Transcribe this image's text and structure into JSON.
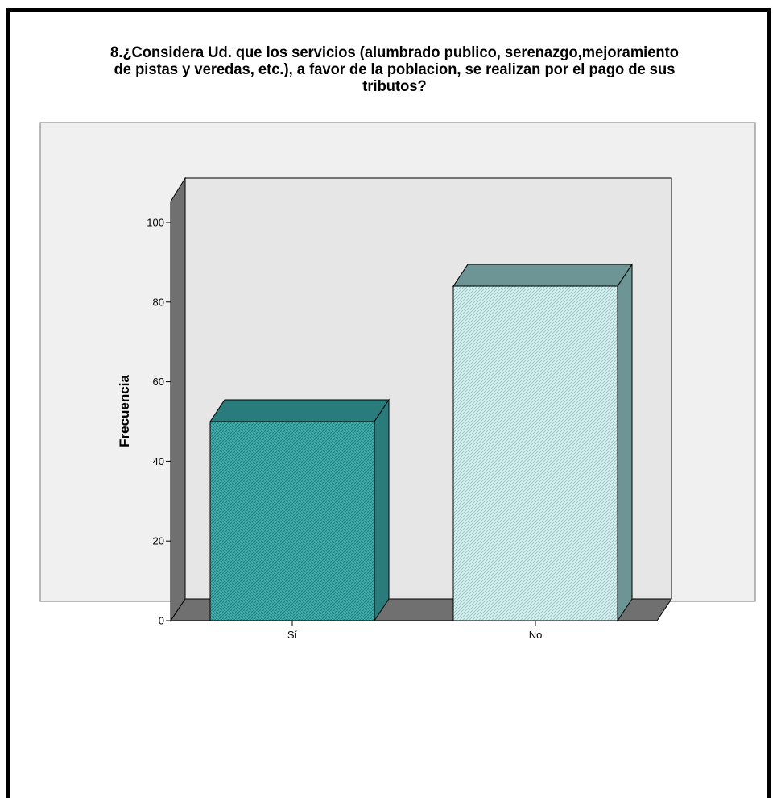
{
  "chart_data": {
    "type": "bar",
    "title_lines": [
      "8.¿Considera Ud. que los servicios (alumbrado publico, serenazgo,mejoramiento",
      "de pistas y veredas, etc.), a favor de la poblacion, se realizan por el pago de sus",
      "tributos?"
    ],
    "ylabel": "Frecuencia",
    "xlabel": "",
    "categories": [
      "Sí",
      "No"
    ],
    "values": [
      50,
      84
    ],
    "ylim": [
      0,
      110
    ],
    "yticks": [
      0,
      20,
      40,
      60,
      80,
      100
    ],
    "bar_colors": [
      "#3aa3a3",
      "#cfeeee"
    ],
    "bar_dark_colors": [
      "#2a7b7b",
      "#6d9595"
    ],
    "grid": false,
    "three_d": true
  }
}
